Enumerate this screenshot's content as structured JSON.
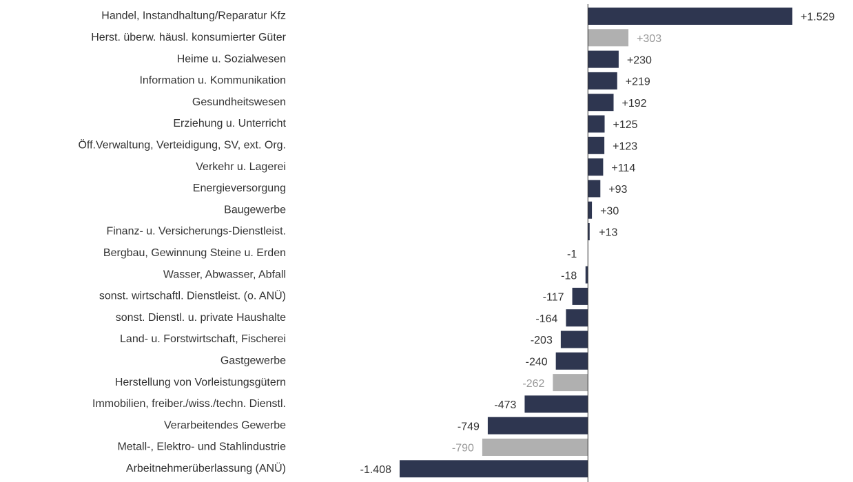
{
  "chart_data": {
    "type": "hbar",
    "categories": [
      "Handel, Instandhaltung/Reparatur Kfz",
      "Herst. überw. häusl. konsumierter Güter",
      "Heime u. Sozialwesen",
      "Information u. Kommunikation",
      "Gesundheitswesen",
      "Erziehung u. Unterricht",
      "Öff.Verwaltung, Verteidigung, SV, ext. Org.",
      "Verkehr u. Lagerei",
      "Energieversorgung",
      "Baugewerbe",
      "Finanz- u. Versicherungs-Dienstleist.",
      "Bergbau, Gewinnung Steine u. Erden",
      "Wasser, Abwasser, Abfall",
      "sonst. wirtschaftl. Dienstleist. (o. ANÜ)",
      "sonst. Dienstl. u. private Haushalte",
      "Land- u. Forstwirtschaft, Fischerei",
      "Gastgewerbe",
      "Herstellung von Vorleistungsgütern",
      "Immobilien, freiber./wiss./techn. Dienstl.",
      "Verarbeitendes Gewerbe",
      "Metall-, Elektro- und Stahlindustrie",
      "Arbeitnehmerüberlassung (ANÜ)"
    ],
    "values": [
      1529,
      303,
      230,
      219,
      192,
      125,
      123,
      114,
      93,
      30,
      13,
      -1,
      -18,
      -117,
      -164,
      -203,
      -240,
      -262,
      -473,
      -749,
      -790,
      -1408
    ],
    "value_labels": [
      "+1.529",
      "+303",
      "+230",
      "+219",
      "+192",
      "+125",
      "+123",
      "+114",
      "+93",
      "+30",
      "+13",
      "-1",
      "-18",
      "-117",
      "-164",
      "-203",
      "-240",
      "-262",
      "-473",
      "-749",
      "-790",
      "-1.408"
    ],
    "colors": [
      "#2e3650",
      "#b0b0b0",
      "#2e3650",
      "#2e3650",
      "#2e3650",
      "#2e3650",
      "#2e3650",
      "#2e3650",
      "#2e3650",
      "#2e3650",
      "#2e3650",
      "#2e3650",
      "#2e3650",
      "#2e3650",
      "#2e3650",
      "#2e3650",
      "#2e3650",
      "#b0b0b0",
      "#2e3650",
      "#2e3650",
      "#b0b0b0",
      "#2e3650"
    ]
  }
}
